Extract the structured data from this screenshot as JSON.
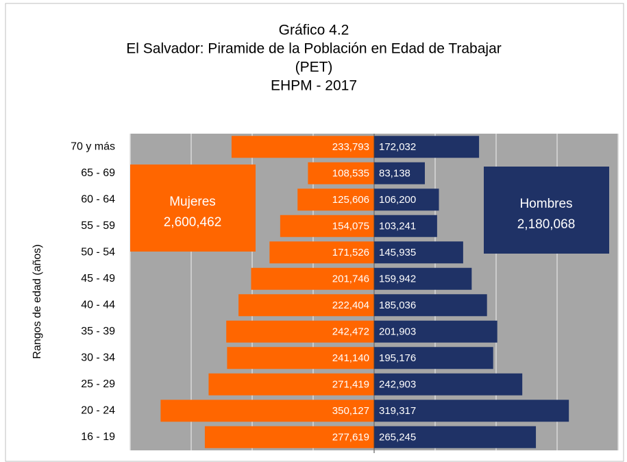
{
  "chart_data": {
    "type": "pyramid",
    "title": [
      "Gráfico 4.2",
      "El Salvador: Piramide de la Población en Edad de Trabajar",
      "(PET)",
      "EHPM - 2017"
    ],
    "y_label": "Rangos de edad (años)",
    "categories": [
      "70 y más",
      "65 - 69",
      "60 - 64",
      "55 - 59",
      "50 - 54",
      "45 - 49",
      "40 - 44",
      "35 - 39",
      "30 - 34",
      "25 - 29",
      "20 - 24",
      "16 - 19"
    ],
    "series": [
      {
        "name": "Mujeres",
        "side": "left",
        "color": "#ff6600",
        "total_label": "2,600,462",
        "values": [
          233793,
          108535,
          125606,
          154075,
          171526,
          201746,
          222404,
          242472,
          241140,
          271419,
          350127,
          277619
        ],
        "value_labels": [
          "233,793",
          "108,535",
          "125,606",
          "154,075",
          "171,526",
          "201,746",
          "222,404",
          "242,472",
          "241,140",
          "271,419",
          "350,127",
          "277,619"
        ]
      },
      {
        "name": "Hombres",
        "side": "right",
        "color": "#1f3266",
        "total_label": "2,180,068",
        "values": [
          172032,
          83138,
          106200,
          103241,
          145935,
          159942,
          185036,
          201903,
          195176,
          242903,
          319317,
          265245
        ],
        "value_labels": [
          "172,032",
          "83,138",
          "106,200",
          "103,241",
          "145,935",
          "159,942",
          "185,036",
          "201,903",
          "195,176",
          "242,903",
          "319,317",
          "265,245"
        ]
      }
    ],
    "xlim": [
      -400000,
      400000
    ],
    "xticks": [
      -400000,
      -300000,
      -200000,
      -100000,
      0,
      100000,
      200000,
      300000,
      400000
    ],
    "grid": true,
    "plot_background": "#a6a6a6"
  }
}
